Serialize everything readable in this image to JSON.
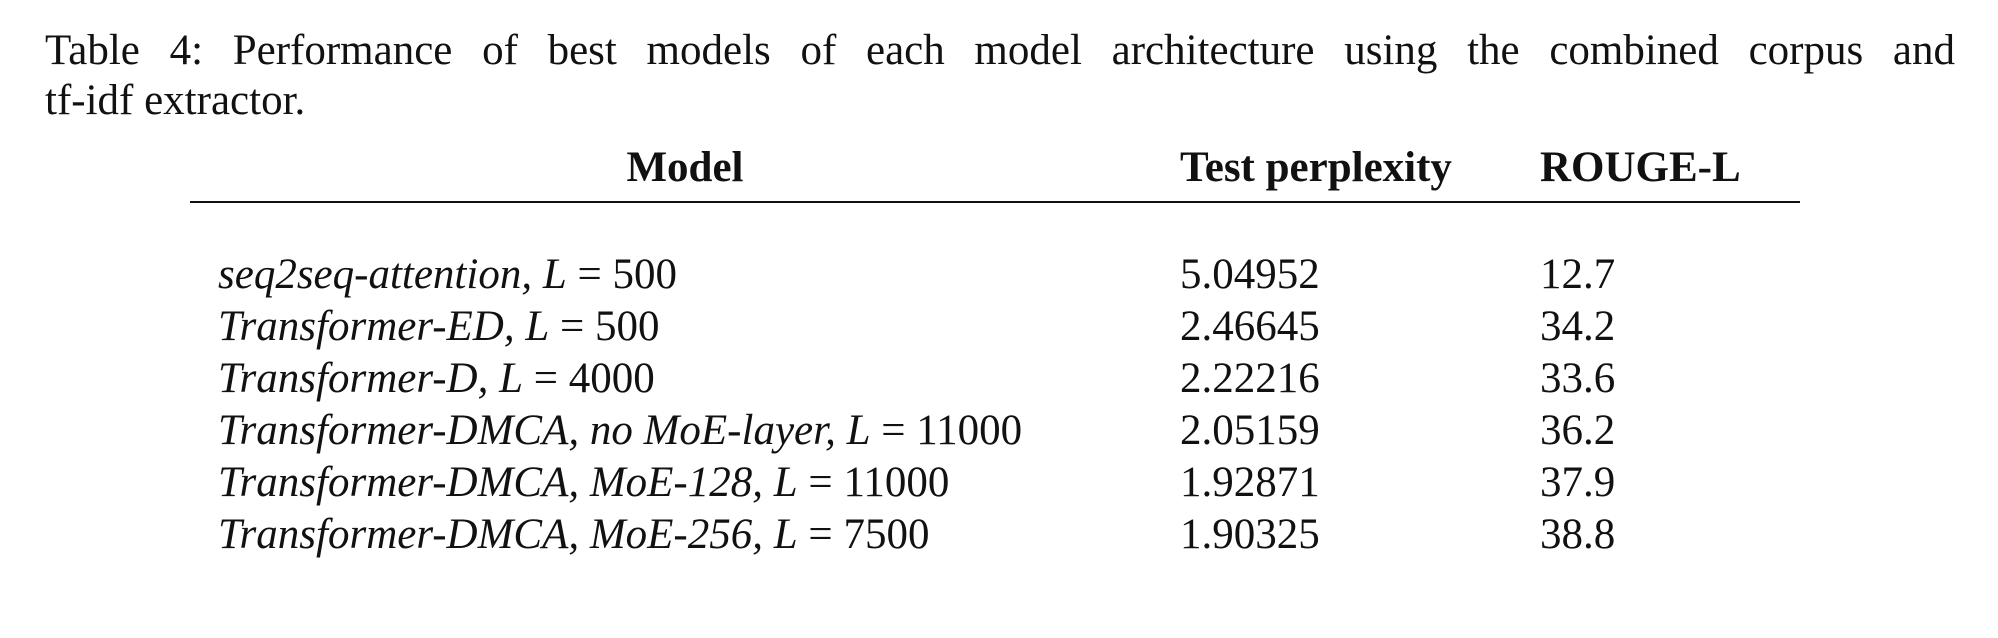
{
  "caption": {
    "line1": "Table 4: Performance of best models of each model architecture using the combined corpus and",
    "line2": "tf-idf extractor."
  },
  "table": {
    "headers": {
      "model": "Model",
      "test_perplexity": "Test perplexity",
      "rouge_l": "ROUGE-L"
    },
    "rows": [
      {
        "model_name": "seq2seq-attention,",
        "L": "500",
        "test_perplexity": "5.04952",
        "rouge_l": "12.7"
      },
      {
        "model_name": "Transformer-ED,",
        "L": "500",
        "test_perplexity": "2.46645",
        "rouge_l": "34.2"
      },
      {
        "model_name": "Transformer-D,",
        "L": "4000",
        "test_perplexity": "2.22216",
        "rouge_l": "33.6"
      },
      {
        "model_name": "Transformer-DMCA, no MoE-layer,",
        "L": "11000",
        "test_perplexity": "2.05159",
        "rouge_l": "36.2"
      },
      {
        "model_name": "Transformer-DMCA, MoE-128,",
        "L": "11000",
        "test_perplexity": "1.92871",
        "rouge_l": "37.9"
      },
      {
        "model_name": "Transformer-DMCA, MoE-256,",
        "L": "7500",
        "test_perplexity": "1.90325",
        "rouge_l": "38.8"
      }
    ]
  }
}
